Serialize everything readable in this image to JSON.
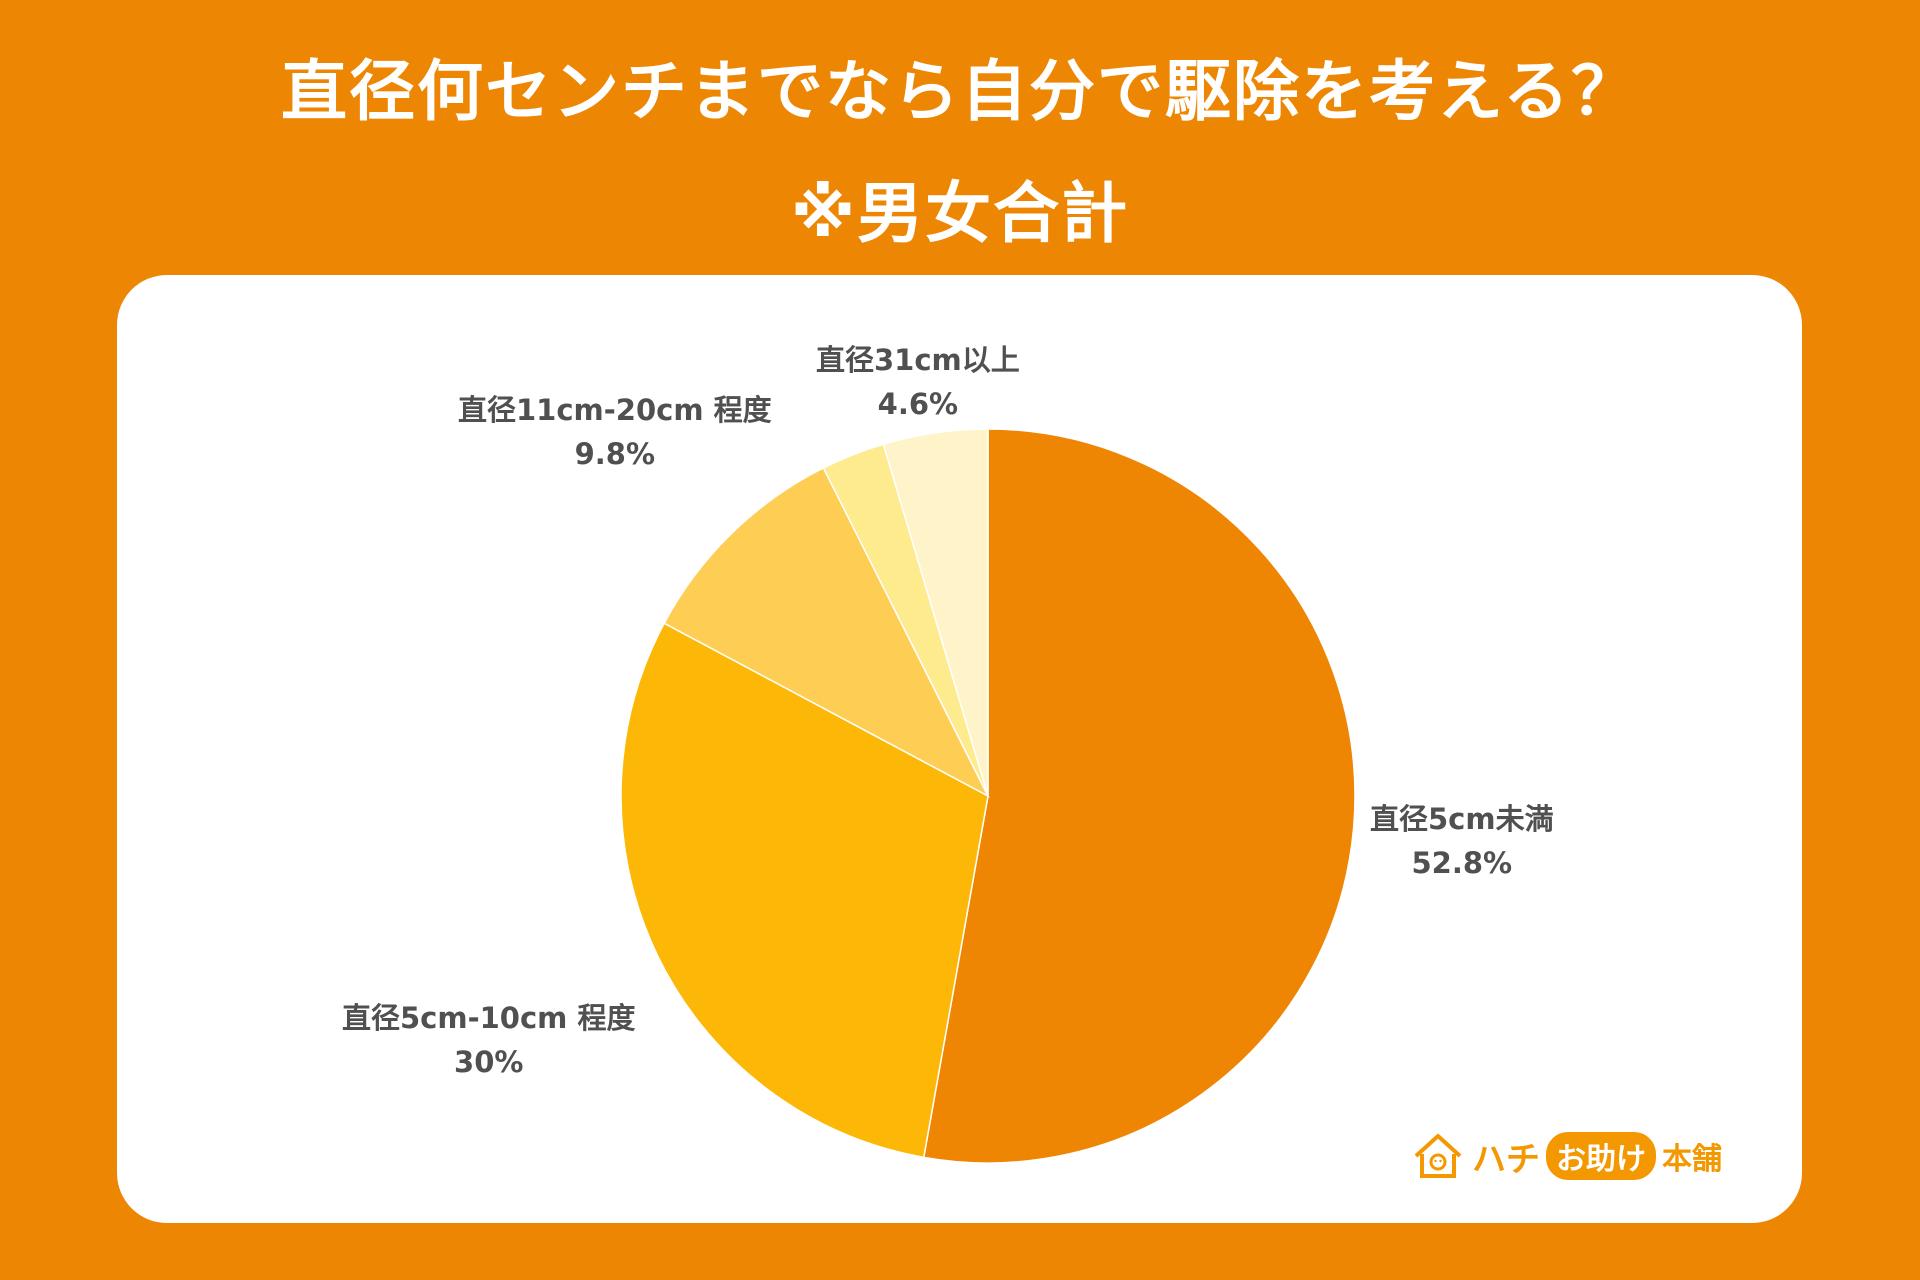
{
  "title": {
    "line1": "直径何センチまでなら自分で駆除を考える？",
    "line2": "※男女合計"
  },
  "chart_data": {
    "type": "pie",
    "categories": [
      "直径5cm未満",
      "直径5cm-10cm 程度",
      "直径11cm-20cm 程度",
      "",
      "直径31cm以上"
    ],
    "values": [
      52.8,
      30,
      9.8,
      2.8,
      4.6
    ],
    "value_labels": [
      "52.8%",
      "30%",
      "9.8%",
      "",
      "4.6%"
    ],
    "colors": [
      "#EE8503",
      "#FDB706",
      "#FECD54",
      "#FEEB8E",
      "#FFF3CA"
    ],
    "start_angle": "12 o'clock",
    "direction": "clockwise"
  },
  "logo": {
    "text_main": "ハチ",
    "text_circle": "お助け",
    "text_tail": "本舗",
    "color": "#F39800"
  }
}
